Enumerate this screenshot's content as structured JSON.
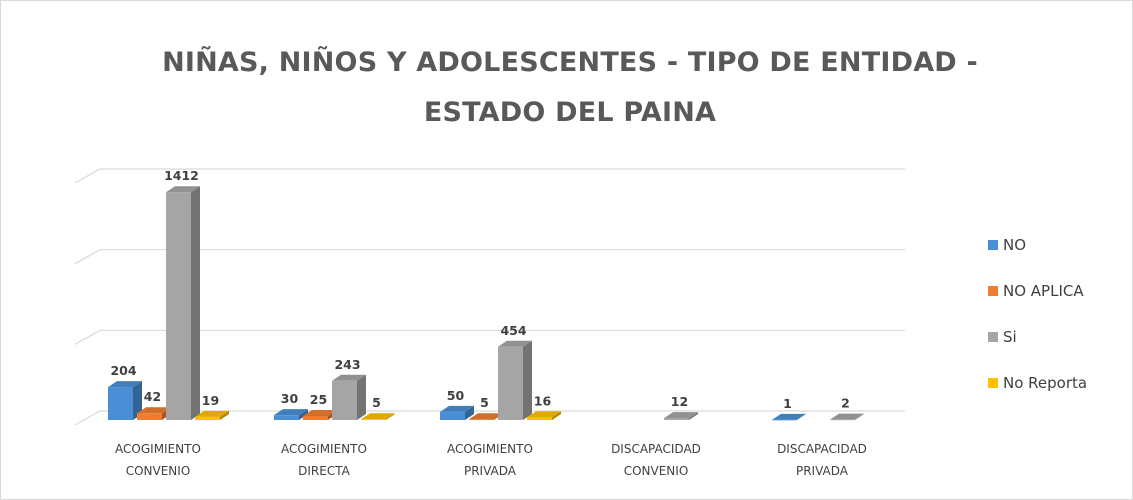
{
  "chart_data": {
    "type": "bar3d",
    "title": "NIÑAS, NIÑOS Y ADOLESCENTES - TIPO DE ENTIDAD - ESTADO DEL PAINA",
    "categories": [
      "ACOGIMIENTO CONVENIO",
      "ACOGIMIENTO DIRECTA",
      "ACOGIMIENTO PRIVADA",
      "DISCAPACIDAD CONVENIO",
      "DISCAPACIDAD PRIVADA"
    ],
    "series": [
      {
        "name": "NO",
        "color": "#4a8fd6",
        "values": [
          204,
          30,
          50,
          null,
          1
        ]
      },
      {
        "name": "NO APLICA",
        "color": "#ed7d31",
        "values": [
          42,
          25,
          5,
          null,
          null
        ]
      },
      {
        "name": "Si",
        "color": "#a5a5a5",
        "values": [
          1412,
          243,
          454,
          12,
          2
        ]
      },
      {
        "name": "No Reporta",
        "color": "#ffc000",
        "values": [
          19,
          5,
          16,
          null,
          null
        ]
      }
    ],
    "ylim": [
      0,
      1500
    ],
    "yticks": [
      0,
      500,
      1000,
      1500
    ],
    "grid": true,
    "legend": "right"
  }
}
